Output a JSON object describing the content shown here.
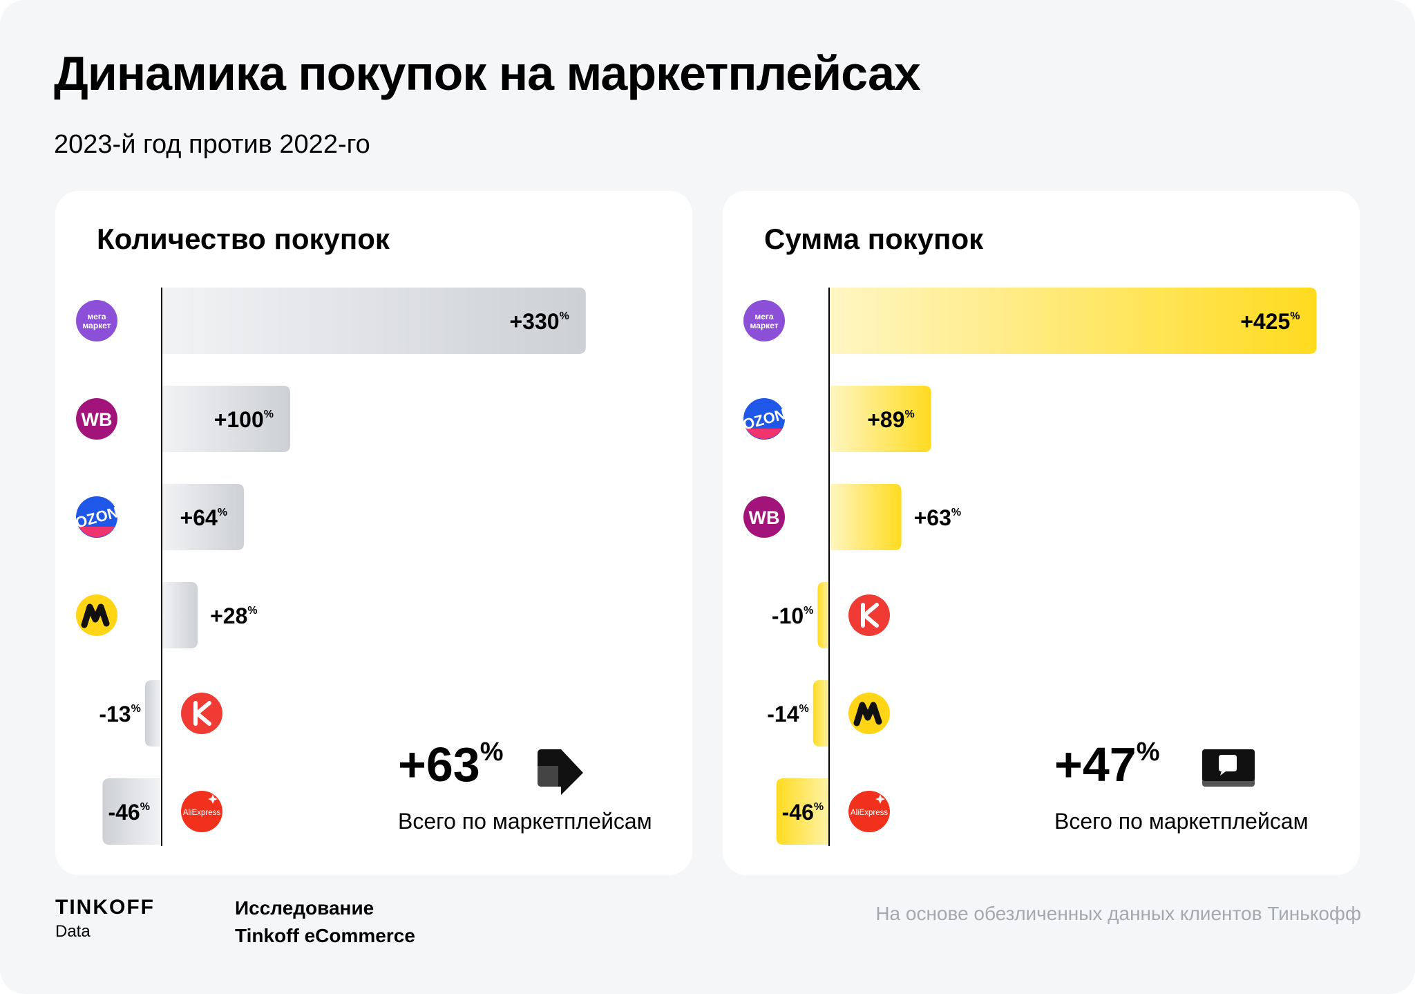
{
  "header": {
    "title": "Динамика покупок на маркетплейсах",
    "subtitle": "2023-й год против 2022-го"
  },
  "colors": {
    "count_bar": "#d4d6da",
    "sum_bar": "#ffdd2d",
    "axis": "#000000"
  },
  "chart_data": [
    {
      "type": "bar",
      "orientation": "horizontal",
      "title": "Количество покупок",
      "unit": "%",
      "categories": [
        "мегамаркет",
        "WB",
        "OZON",
        "Яндекс Маркет",
        "КазаньExpress",
        "AliExpress"
      ],
      "icons": [
        "megamarket-logo",
        "wb-logo",
        "ozon-logo",
        "yandex-market-logo",
        "kazanexpress-logo",
        "aliexpress-logo"
      ],
      "values": [
        330,
        100,
        64,
        28,
        -13,
        -46
      ],
      "labels": [
        "+330",
        "+100",
        "+64",
        "+28",
        "-13",
        "-46"
      ],
      "total": {
        "value": "+63",
        "unit": "%",
        "label": "Всего по маркетплейсам"
      }
    },
    {
      "type": "bar",
      "orientation": "horizontal",
      "title": "Сумма покупок",
      "unit": "%",
      "categories": [
        "мегамаркет",
        "OZON",
        "WB",
        "КазаньExpress",
        "Яндекс Маркет",
        "AliExpress"
      ],
      "icons": [
        "megamarket-logo",
        "ozon-logo",
        "wb-logo",
        "kazanexpress-logo",
        "yandex-market-logo",
        "aliexpress-logo"
      ],
      "values": [
        425,
        89,
        63,
        -10,
        -14,
        -46
      ],
      "labels": [
        "+425",
        "+89",
        "+63",
        "-10",
        "-14",
        "-46"
      ],
      "total": {
        "value": "+47",
        "unit": "%",
        "label": "Всего по маркетплейсам"
      }
    }
  ],
  "footer": {
    "brand": "TINKOFF",
    "brand_sub": "Data",
    "study_line1": "Исследование",
    "study_line2": "Tinkoff eCommerce",
    "note": "На основе обезличенных данных клиентов Тинькофф"
  },
  "logo_text": {
    "megamarket_1": "мега",
    "megamarket_2": "маркет",
    "wb": "WB",
    "ozon": "OZON",
    "kazanexpress": "K",
    "aliexpress": "AliExpress"
  }
}
